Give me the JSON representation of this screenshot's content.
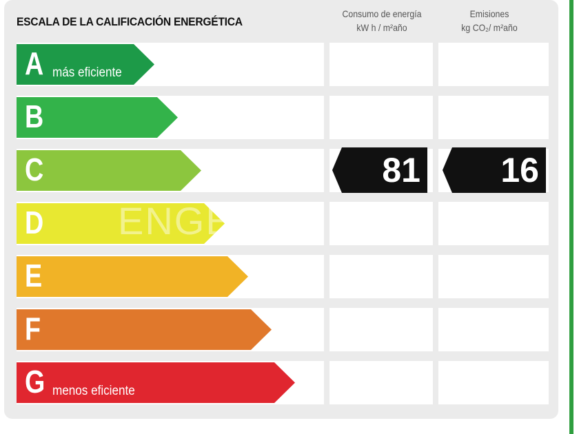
{
  "title": "ESCALA DE LA CALIFICACIÓN ENERGÉTICA",
  "columns": {
    "energy": {
      "line1": "Consumo de energía",
      "line2": "kW h / m²año"
    },
    "emissions": {
      "line1": "Emisiones",
      "line2": "kg CO₂/ m²año"
    }
  },
  "ratings": [
    {
      "letter": "A",
      "label": "más eficiente",
      "color": "#1d9a48"
    },
    {
      "letter": "B",
      "label": "",
      "color": "#33b34a"
    },
    {
      "letter": "C",
      "label": "",
      "color": "#8cc63e"
    },
    {
      "letter": "D",
      "label": "",
      "color": "#e8e831"
    },
    {
      "letter": "E",
      "label": "",
      "color": "#f1b326"
    },
    {
      "letter": "F",
      "label": "",
      "color": "#e0782c"
    },
    {
      "letter": "G",
      "label": "menos eficiente",
      "color": "#e0262f"
    }
  ],
  "current": {
    "rating": "C",
    "energy_value": "81",
    "emissions_value": "16"
  },
  "watermark": "ENGE"
}
